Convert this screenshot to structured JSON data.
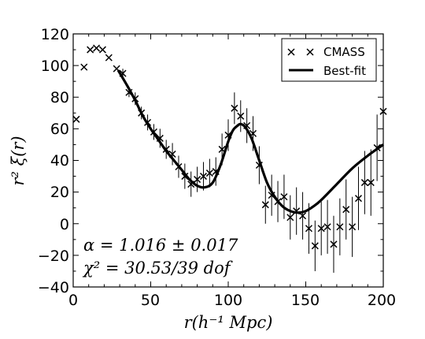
{
  "chart_data": {
    "type": "scatter",
    "xlabel": "r(h⁻¹ Mpc)",
    "ylabel": "r² ξ(r)",
    "xlim": [
      0,
      200
    ],
    "ylim": [
      -40,
      120
    ],
    "x_ticks": [
      "0",
      "50",
      "100",
      "150",
      "200"
    ],
    "y_ticks": [
      "120",
      "100",
      "80",
      "60",
      "40",
      "20",
      "0",
      "−20",
      "−40"
    ],
    "legend_position": "top-right",
    "series": [
      {
        "name": "CMASS",
        "kind": "points-with-errorbars",
        "marker": "x",
        "points": [
          {
            "x": 2,
            "y": 66,
            "err": 0
          },
          {
            "x": 7,
            "y": 99,
            "err": 0
          },
          {
            "x": 11,
            "y": 110,
            "err": 0
          },
          {
            "x": 15,
            "y": 111,
            "err": 0
          },
          {
            "x": 19,
            "y": 110,
            "err": 0
          },
          {
            "x": 23,
            "y": 105,
            "err": 0
          },
          {
            "x": 28,
            "y": 98,
            "err": 0
          },
          {
            "x": 32,
            "y": 95,
            "err": 3
          },
          {
            "x": 36,
            "y": 83,
            "err": 3
          },
          {
            "x": 40,
            "y": 79,
            "err": 4
          },
          {
            "x": 44,
            "y": 70,
            "err": 4
          },
          {
            "x": 48,
            "y": 64,
            "err": 5
          },
          {
            "x": 52,
            "y": 58,
            "err": 5
          },
          {
            "x": 56,
            "y": 54,
            "err": 6
          },
          {
            "x": 60,
            "y": 47,
            "err": 6
          },
          {
            "x": 64,
            "y": 44,
            "err": 7
          },
          {
            "x": 68,
            "y": 36,
            "err": 7
          },
          {
            "x": 72,
            "y": 30,
            "err": 8
          },
          {
            "x": 76,
            "y": 25,
            "err": 8
          },
          {
            "x": 80,
            "y": 28,
            "err": 8
          },
          {
            "x": 84,
            "y": 30,
            "err": 9
          },
          {
            "x": 88,
            "y": 32,
            "err": 9
          },
          {
            "x": 92,
            "y": 33,
            "err": 9
          },
          {
            "x": 96,
            "y": 47,
            "err": 10
          },
          {
            "x": 100,
            "y": 56,
            "err": 10
          },
          {
            "x": 104,
            "y": 73,
            "err": 10
          },
          {
            "x": 108,
            "y": 68,
            "err": 10
          },
          {
            "x": 112,
            "y": 62,
            "err": 11
          },
          {
            "x": 116,
            "y": 57,
            "err": 11
          },
          {
            "x": 120,
            "y": 37,
            "err": 12
          },
          {
            "x": 124,
            "y": 12,
            "err": 12
          },
          {
            "x": 128,
            "y": 18,
            "err": 13
          },
          {
            "x": 132,
            "y": 14,
            "err": 13
          },
          {
            "x": 136,
            "y": 17,
            "err": 14
          },
          {
            "x": 140,
            "y": 4,
            "err": 14
          },
          {
            "x": 144,
            "y": 8,
            "err": 15
          },
          {
            "x": 148,
            "y": 5,
            "err": 15
          },
          {
            "x": 152,
            "y": -3,
            "err": 16
          },
          {
            "x": 156,
            "y": -14,
            "err": 16
          },
          {
            "x": 160,
            "y": -3,
            "err": 17
          },
          {
            "x": 164,
            "y": -2,
            "err": 17
          },
          {
            "x": 168,
            "y": -13,
            "err": 18
          },
          {
            "x": 172,
            "y": -2,
            "err": 18
          },
          {
            "x": 176,
            "y": 9,
            "err": 19
          },
          {
            "x": 180,
            "y": -2,
            "err": 19
          },
          {
            "x": 184,
            "y": 16,
            "err": 20
          },
          {
            "x": 188,
            "y": 26,
            "err": 20
          },
          {
            "x": 192,
            "y": 26,
            "err": 21
          },
          {
            "x": 196,
            "y": 48,
            "err": 21
          },
          {
            "x": 200,
            "y": 71,
            "err": 22
          }
        ]
      },
      {
        "name": "Best-fit",
        "kind": "line",
        "x": [
          29,
          35,
          40,
          45,
          50,
          55,
          60,
          65,
          70,
          75,
          80,
          85,
          90,
          95,
          100,
          103,
          106,
          108,
          111,
          115,
          120,
          125,
          130,
          135,
          140,
          145,
          150,
          155,
          160,
          170,
          180,
          190,
          200
        ],
        "y": [
          97,
          87,
          78,
          68,
          60,
          53,
          46,
          40,
          34,
          28,
          24,
          23,
          26,
          37,
          52,
          59,
          62,
          63,
          61,
          54,
          40,
          26,
          17,
          11,
          8,
          7,
          8,
          11,
          15,
          25,
          35,
          43,
          50
        ]
      }
    ],
    "annotations": [
      "α = 1.016 ± 0.017",
      "χ² = 30.53/39  dof"
    ]
  }
}
